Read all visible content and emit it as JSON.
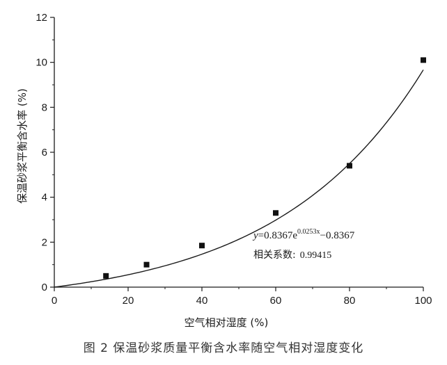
{
  "caption": "图 2   保温砂浆质量平衡含水率随空气相对湿度变化",
  "chart_data": {
    "type": "scatter",
    "xlabel": "空气相对湿度 (%)",
    "ylabel": "保温砂浆平衡含水率 (%)",
    "xlim": [
      0,
      100
    ],
    "ylim": [
      0,
      12
    ],
    "x_ticks": [
      0,
      20,
      40,
      60,
      80,
      100
    ],
    "y_ticks": [
      0,
      2,
      4,
      6,
      8,
      10,
      12
    ],
    "x_tick_labels": [
      "0",
      "20",
      "40",
      "60",
      "80",
      "100"
    ],
    "y_tick_labels": [
      "0",
      "2",
      "4",
      "6",
      "8",
      "10",
      "12"
    ],
    "series": [
      {
        "x": [
          14,
          25,
          40,
          60,
          80,
          100
        ],
        "y": [
          0.5,
          1.0,
          1.85,
          3.3,
          5.4,
          10.1
        ]
      }
    ],
    "fit": {
      "a": 0.8367,
      "b": 0.0253,
      "c": 0.8367
    },
    "annotation": {
      "eq_y": "y",
      "eq_coef": "=0.8367e",
      "eq_exp": "0.0253x",
      "eq_tail": "−0.8367",
      "corr_label": "相关系数:",
      "corr_value": "0.99415"
    },
    "grid": false,
    "legend": "none"
  }
}
